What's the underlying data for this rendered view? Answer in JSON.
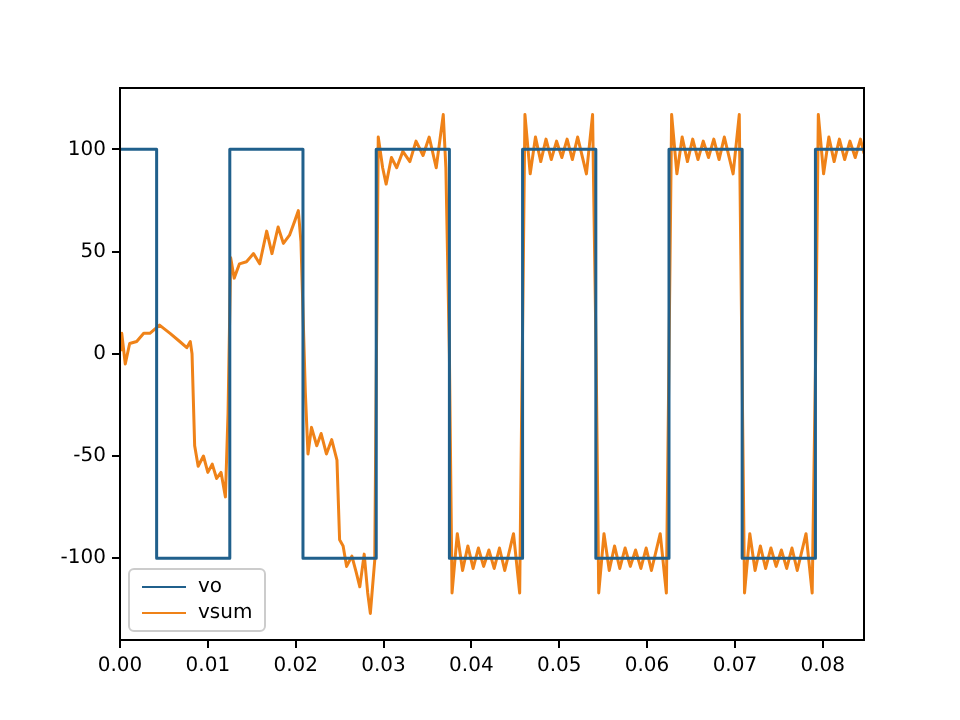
{
  "chart_data": {
    "type": "line",
    "xlim": [
      0,
      0.0847
    ],
    "ylim": [
      -140,
      130
    ],
    "xticks": [
      {
        "value": 0,
        "label": "0.00"
      },
      {
        "value": 0.01,
        "label": "0.01"
      },
      {
        "value": 0.02,
        "label": "0.02"
      },
      {
        "value": 0.03,
        "label": "0.03"
      },
      {
        "value": 0.04,
        "label": "0.04"
      },
      {
        "value": 0.05,
        "label": "0.05"
      },
      {
        "value": 0.06,
        "label": "0.06"
      },
      {
        "value": 0.07,
        "label": "0.07"
      },
      {
        "value": 0.08,
        "label": "0.08"
      }
    ],
    "yticks": [
      -100,
      -50,
      0,
      50,
      100
    ],
    "grid": false,
    "legend": "bottom left",
    "marker": "none",
    "line_style": "solid",
    "series": [
      {
        "name": "vo",
        "color": "#20608c",
        "x": [
          0,
          0.00417,
          0.00417,
          0.0125,
          0.0125,
          0.02083,
          0.02083,
          0.02917,
          0.02917,
          0.0375,
          0.0375,
          0.04583,
          0.04583,
          0.05417,
          0.05417,
          0.0625,
          0.0625,
          0.07083,
          0.07083,
          0.07917,
          0.07917,
          0.0847
        ],
        "values": [
          100,
          100,
          -100,
          -100,
          100,
          100,
          -100,
          -100,
          100,
          100,
          -100,
          -100,
          100,
          100,
          -100,
          -100,
          100,
          100,
          -100,
          -100,
          100,
          100
        ]
      },
      {
        "name": "vsum",
        "color": "#ef8218",
        "x": [
          0,
          0.0002,
          0.0006,
          0.0011,
          0.0019,
          0.0027,
          0.0034,
          0.0045,
          0.0057,
          0.0068,
          0.0076,
          0.008,
          0.0082,
          0.0085,
          0.0089,
          0.0095,
          0.01,
          0.0105,
          0.011,
          0.0115,
          0.012,
          0.0123,
          0.0126,
          0.013,
          0.0136,
          0.0144,
          0.0152,
          0.0159,
          0.0167,
          0.0173,
          0.018,
          0.0186,
          0.0193,
          0.0199,
          0.0203,
          0.0206,
          0.0211,
          0.0214,
          0.0218,
          0.0224,
          0.0229,
          0.0235,
          0.0241,
          0.0247,
          0.025,
          0.0254,
          0.0258,
          0.0264,
          0.0269,
          0.0273,
          0.0278,
          0.0282,
          0.0285,
          0.029,
          0.0294,
          0.0299,
          0.0303,
          0.0309,
          0.0315,
          0.0322,
          0.033,
          0.0337,
          0.0345,
          0.0352,
          0.036,
          0.0368,
          0.0371,
          0.0375,
          0.0378,
          0.0384,
          0.039,
          0.0396,
          0.0402,
          0.0408,
          0.0414,
          0.042,
          0.0426,
          0.0432,
          0.0438,
          0.0448,
          0.0455,
          0.0458,
          0.0461,
          0.0467,
          0.0473,
          0.0479,
          0.0485,
          0.0491,
          0.0497,
          0.0503,
          0.0509,
          0.0515,
          0.0521,
          0.0531,
          0.0538,
          0.0542,
          0.0545,
          0.0551,
          0.0557,
          0.0563,
          0.0569,
          0.0575,
          0.0581,
          0.0587,
          0.0593,
          0.0599,
          0.0605,
          0.0615,
          0.0622,
          0.0625,
          0.0628,
          0.0634,
          0.064,
          0.0646,
          0.0652,
          0.0658,
          0.0664,
          0.067,
          0.0676,
          0.0682,
          0.0688,
          0.0698,
          0.0705,
          0.0708,
          0.0711,
          0.0717,
          0.0723,
          0.0729,
          0.0735,
          0.0741,
          0.0747,
          0.0753,
          0.0759,
          0.0765,
          0.0771,
          0.0781,
          0.0788,
          0.0792,
          0.0795,
          0.0801,
          0.0807,
          0.0813,
          0.0819,
          0.0825,
          0.0831,
          0.0837,
          0.0843,
          0.0847
        ],
        "values": [
          2,
          10,
          -5,
          5,
          6,
          10,
          10,
          14,
          10,
          6,
          3,
          6,
          0,
          -45,
          -55,
          -50,
          -58,
          -54,
          -61,
          -58,
          -70,
          -29,
          47,
          37,
          44,
          45,
          49,
          44,
          60,
          49,
          62,
          54,
          58,
          65,
          70,
          55,
          -19,
          -49,
          -36,
          -45,
          -39,
          -49,
          -42,
          -52,
          -91,
          -94,
          -104,
          -99,
          -107,
          -114,
          -98,
          -117,
          -127,
          -101,
          106,
          91,
          83,
          96,
          91,
          99,
          94,
          104,
          97,
          106,
          91,
          117,
          91,
          0,
          -117,
          -88,
          -106,
          -94,
          -105,
          -95,
          -104,
          -96,
          -105,
          -95,
          -106,
          -88,
          -117,
          0,
          117,
          88,
          106,
          94,
          105,
          95,
          104,
          96,
          105,
          95,
          106,
          88,
          117,
          0,
          -117,
          -88,
          -106,
          -94,
          -105,
          -95,
          -104,
          -96,
          -105,
          -95,
          -106,
          -88,
          -117,
          0,
          117,
          88,
          106,
          94,
          105,
          95,
          104,
          96,
          105,
          95,
          106,
          88,
          117,
          0,
          -117,
          -88,
          -106,
          -94,
          -105,
          -95,
          -104,
          -96,
          -105,
          -95,
          -106,
          -88,
          -117,
          0,
          117,
          88,
          106,
          94,
          105,
          95,
          104,
          96,
          105,
          98
        ]
      }
    ]
  }
}
